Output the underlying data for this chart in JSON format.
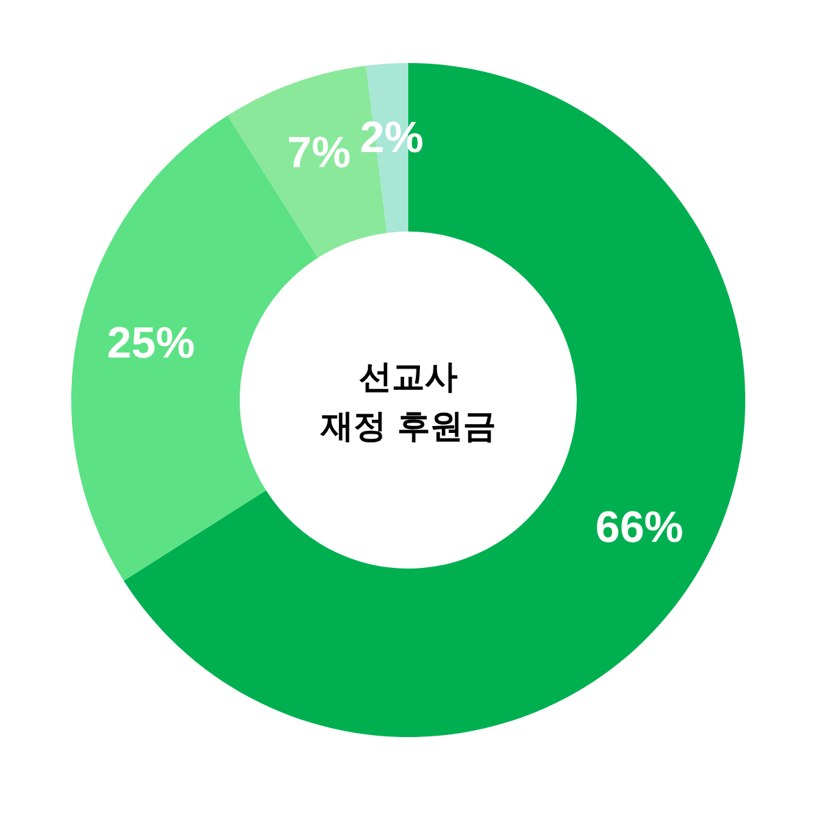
{
  "chart_data": {
    "type": "donut",
    "title": "선교사\n재정 후원금",
    "categories": [
      null,
      null,
      null,
      null
    ],
    "values": [
      66,
      25,
      7,
      2
    ],
    "colors": [
      "#00b050",
      "#5ce184",
      "#8ae89a",
      "#a8e6d6"
    ],
    "value_labels": [
      "66%",
      "25%",
      "7%",
      "2%"
    ],
    "legend": false
  }
}
